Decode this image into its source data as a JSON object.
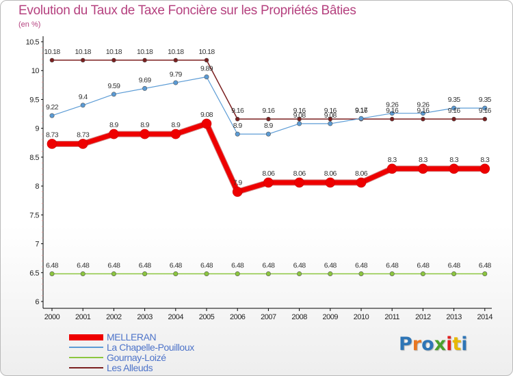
{
  "header": {
    "title": "Evolution du Taux de Taxe Foncière sur les Propriétés Bâties",
    "subtitle": "(en %)"
  },
  "logo": {
    "text": "Proxiti"
  },
  "chart_data": {
    "type": "line",
    "title": "Evolution du Taux de Taxe Foncière sur les Propriétés Bâties",
    "ylabel": "(en %)",
    "xlabel": "",
    "ylim": [
      6,
      10.5
    ],
    "yticks": [
      "6",
      "6.5",
      "7",
      "7.5",
      "8",
      "8.5",
      "9",
      "9.5",
      "10",
      "10.5"
    ],
    "yticks_values": [
      6,
      6.5,
      7,
      7.5,
      8,
      8.5,
      9,
      9.5,
      10,
      10.5
    ],
    "categories": [
      "2000",
      "2001",
      "2002",
      "2003",
      "2004",
      "2005",
      "2006",
      "2007",
      "2008",
      "2009",
      "2010",
      "2011",
      "2012",
      "2013",
      "2014"
    ],
    "legend_position": "bottom-left",
    "grid": false,
    "series": [
      {
        "name": "MELLERAN",
        "color": "#ee0000",
        "values": [
          8.73,
          8.73,
          8.9,
          8.9,
          8.9,
          9.08,
          7.9,
          8.06,
          8.06,
          8.06,
          8.06,
          8.3,
          8.3,
          8.3,
          8.3
        ],
        "labels": [
          "8.73",
          "8.73",
          "8.9",
          "8.9",
          "8.9",
          "9.08",
          "7.9",
          "8.06",
          "8.06",
          "8.06",
          "8.06",
          "8.3",
          "8.3",
          "8.3",
          "8.3"
        ]
      },
      {
        "name": "La Chapelle-Pouilloux",
        "color": "#5b9bd5",
        "values": [
          9.22,
          9.4,
          9.59,
          9.69,
          9.79,
          9.89,
          8.9,
          8.9,
          9.08,
          9.08,
          9.17,
          9.26,
          9.26,
          9.35,
          9.35
        ],
        "labels": [
          "9.22",
          "9.4",
          "9.59",
          "9.69",
          "9.79",
          "9.89",
          "8.9",
          "8.9",
          "9.08",
          "9.08",
          "9.17",
          "9.26",
          "9.26",
          "9.35",
          "9.35"
        ]
      },
      {
        "name": "Gournay-Loizé",
        "color": "#8cc63f",
        "values": [
          6.48,
          6.48,
          6.48,
          6.48,
          6.48,
          6.48,
          6.48,
          6.48,
          6.48,
          6.48,
          6.48,
          6.48,
          6.48,
          6.48,
          6.48
        ],
        "labels": [
          "6.48",
          "6.48",
          "6.48",
          "6.48",
          "6.48",
          "6.48",
          "6.48",
          "6.48",
          "6.48",
          "6.48",
          "6.48",
          "6.48",
          "6.48",
          "6.48",
          "6.48"
        ]
      },
      {
        "name": "Les Alleuds",
        "color": "#7b1f1f",
        "values": [
          10.18,
          10.18,
          10.18,
          10.18,
          10.18,
          10.18,
          9.16,
          9.16,
          9.16,
          9.16,
          9.16,
          9.16,
          9.16,
          9.16,
          9.16
        ],
        "labels": [
          "10.18",
          "10.18",
          "10.18",
          "10.18",
          "10.18",
          "10.18",
          "9.16",
          "9.16",
          "9.16",
          "9.16",
          "9.16",
          "9.16",
          "9.16",
          "9.16",
          "9.16"
        ]
      }
    ]
  }
}
